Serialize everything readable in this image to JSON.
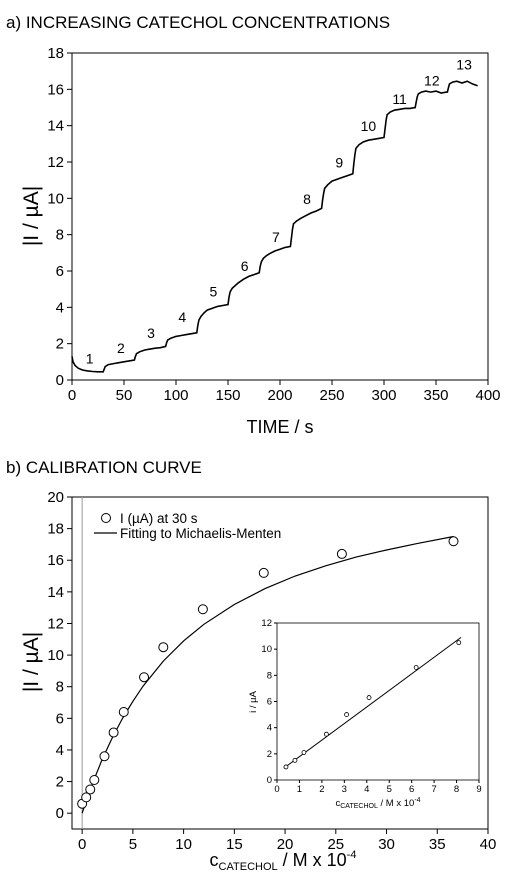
{
  "chart_data": [
    {
      "type": "line",
      "title": "a) INCREASING CATECHOL CONCENTRATIONS",
      "xlabel": "TIME / s",
      "ylabel": "|I / µA|",
      "xlim": [
        0,
        400
      ],
      "ylim": [
        0,
        18
      ],
      "xticks": [
        "0",
        "50",
        "100",
        "150",
        "200",
        "250",
        "300",
        "350",
        "400"
      ],
      "yticks": [
        "0",
        "2",
        "4",
        "6",
        "8",
        "10",
        "12",
        "14",
        "16",
        "18"
      ],
      "grid": false,
      "series": [
        {
          "x": [
            0,
            1,
            3,
            6,
            10,
            15,
            20,
            25,
            30,
            31,
            32,
            35,
            40,
            45,
            50,
            55,
            60,
            61,
            62,
            65,
            70,
            75,
            80,
            85,
            90,
            91,
            92,
            95,
            100,
            105,
            110,
            115,
            120,
            121,
            122,
            124,
            127,
            130,
            135,
            140,
            145,
            150,
            151,
            152,
            154,
            157,
            160,
            165,
            170,
            175,
            180,
            181,
            182,
            184,
            187,
            190,
            195,
            200,
            205,
            210,
            211,
            212,
            213,
            216,
            220,
            225,
            230,
            235,
            240,
            241,
            242,
            243,
            246,
            250,
            255,
            260,
            265,
            270,
            271,
            272,
            273,
            276,
            280,
            285,
            290,
            295,
            300,
            301,
            302,
            303,
            306,
            310,
            315,
            320,
            325,
            330,
            331,
            332,
            333,
            336,
            340,
            345,
            350,
            355,
            360,
            361,
            362,
            363,
            366,
            370,
            375,
            380,
            385,
            390
          ],
          "y": [
            1.3,
            1.0,
            0.8,
            0.65,
            0.55,
            0.5,
            0.47,
            0.45,
            0.45,
            0.6,
            0.75,
            0.85,
            0.9,
            0.95,
            1.0,
            1.05,
            1.1,
            1.3,
            1.45,
            1.55,
            1.65,
            1.7,
            1.75,
            1.78,
            1.85,
            2.05,
            2.2,
            2.3,
            2.4,
            2.45,
            2.5,
            2.55,
            2.6,
            3.0,
            3.3,
            3.5,
            3.7,
            3.85,
            3.95,
            4.05,
            4.1,
            4.15,
            4.55,
            4.85,
            5.05,
            5.2,
            5.35,
            5.55,
            5.7,
            5.8,
            5.9,
            6.25,
            6.5,
            6.7,
            6.85,
            6.95,
            7.1,
            7.2,
            7.3,
            7.35,
            7.8,
            8.3,
            8.6,
            8.75,
            8.9,
            9.05,
            9.2,
            9.3,
            9.45,
            9.9,
            10.3,
            10.55,
            10.75,
            10.95,
            11.05,
            11.15,
            11.25,
            11.35,
            11.9,
            12.4,
            12.75,
            12.95,
            13.1,
            13.2,
            13.25,
            13.3,
            13.35,
            13.8,
            14.3,
            14.6,
            14.75,
            14.85,
            14.9,
            14.95,
            14.95,
            15.0,
            15.3,
            15.6,
            15.75,
            15.85,
            15.9,
            15.85,
            15.9,
            15.8,
            15.85,
            15.85,
            16.1,
            16.3,
            16.4,
            16.45,
            16.35,
            16.45,
            16.3,
            16.2
          ]
        }
      ],
      "annotations": [
        {
          "text": "1",
          "x": 17,
          "y": 0.9
        },
        {
          "text": "2",
          "x": 47,
          "y": 1.5
        },
        {
          "text": "3",
          "x": 76,
          "y": 2.3
        },
        {
          "text": "4",
          "x": 106,
          "y": 3.2
        },
        {
          "text": "5",
          "x": 136,
          "y": 4.6
        },
        {
          "text": "6",
          "x": 166,
          "y": 6.0
        },
        {
          "text": "7",
          "x": 196,
          "y": 7.6
        },
        {
          "text": "8",
          "x": 226,
          "y": 9.7
        },
        {
          "text": "9",
          "x": 257,
          "y": 11.7
        },
        {
          "text": "10",
          "x": 285,
          "y": 13.7
        },
        {
          "text": "11",
          "x": 315,
          "y": 15.2
        },
        {
          "text": "12",
          "x": 346,
          "y": 16.2
        },
        {
          "text": "13",
          "x": 377,
          "y": 17.1
        }
      ]
    },
    {
      "type": "scatter",
      "title": "b) CALIBRATION CURVE",
      "xlabel": "c",
      "xlabel_sub": "CATECHOL",
      "xlabel_tail": " / M x 10",
      "xlabel_sup": "-4",
      "ylabel": "|I / µA|",
      "xlim": [
        -1,
        40
      ],
      "ylim": [
        -1,
        20
      ],
      "xticks": [
        "0",
        "5",
        "10",
        "15",
        "20",
        "25",
        "30",
        "35",
        "40"
      ],
      "yticks": [
        "0",
        "2",
        "4",
        "6",
        "8",
        "10",
        "12",
        "14",
        "16",
        "18",
        "20"
      ],
      "grid": false,
      "legend_position": "top-left",
      "series": [
        {
          "name": "I (µA) at 30 s",
          "x": [
            0.0,
            0.4,
            0.8,
            1.2,
            2.2,
            3.1,
            4.1,
            6.1,
            8.0,
            11.9,
            17.9,
            25.6,
            36.6
          ],
          "y": [
            0.6,
            1.0,
            1.5,
            2.1,
            3.6,
            5.1,
            6.4,
            8.6,
            10.5,
            12.9,
            15.2,
            16.4,
            17.2
          ]
        },
        {
          "name": "Fitting to Michaelis-Menten",
          "x": [
            0,
            1,
            2,
            3,
            4,
            5,
            6,
            8,
            10,
            12,
            15,
            18,
            21,
            24,
            27,
            30,
            33,
            36.6
          ],
          "y": [
            0.0,
            1.85,
            3.44,
            4.81,
            6.02,
            7.08,
            8.03,
            9.62,
            10.9,
            11.95,
            13.2,
            14.2,
            15.0,
            15.65,
            16.2,
            16.65,
            17.05,
            17.5
          ]
        }
      ],
      "inset": {
        "type": "scatter",
        "xlabel": "c",
        "xlabel_sub": "CATECHOL",
        "xlabel_tail": " / M x 10",
        "xlabel_sup": "-4",
        "ylabel": "i / µA",
        "xlim": [
          0,
          9
        ],
        "ylim": [
          0,
          12
        ],
        "xticks": [
          "0",
          "1",
          "2",
          "3",
          "4",
          "5",
          "6",
          "7",
          "8",
          "9"
        ],
        "yticks": [
          "0",
          "2",
          "4",
          "6",
          "8",
          "10",
          "12"
        ],
        "points": {
          "x": [
            0.4,
            0.8,
            1.2,
            2.2,
            3.1,
            4.1,
            6.2,
            8.1
          ],
          "y": [
            1.0,
            1.5,
            2.1,
            3.5,
            5.0,
            6.3,
            8.6,
            10.5
          ]
        },
        "fit": {
          "x": [
            0.3,
            8.2
          ],
          "y": [
            0.9,
            10.9
          ]
        }
      }
    }
  ],
  "step_labels": [
    "1",
    "2",
    "3",
    "4",
    "5",
    "6",
    "7",
    "8",
    "9",
    "10",
    "11",
    "12",
    "13"
  ]
}
